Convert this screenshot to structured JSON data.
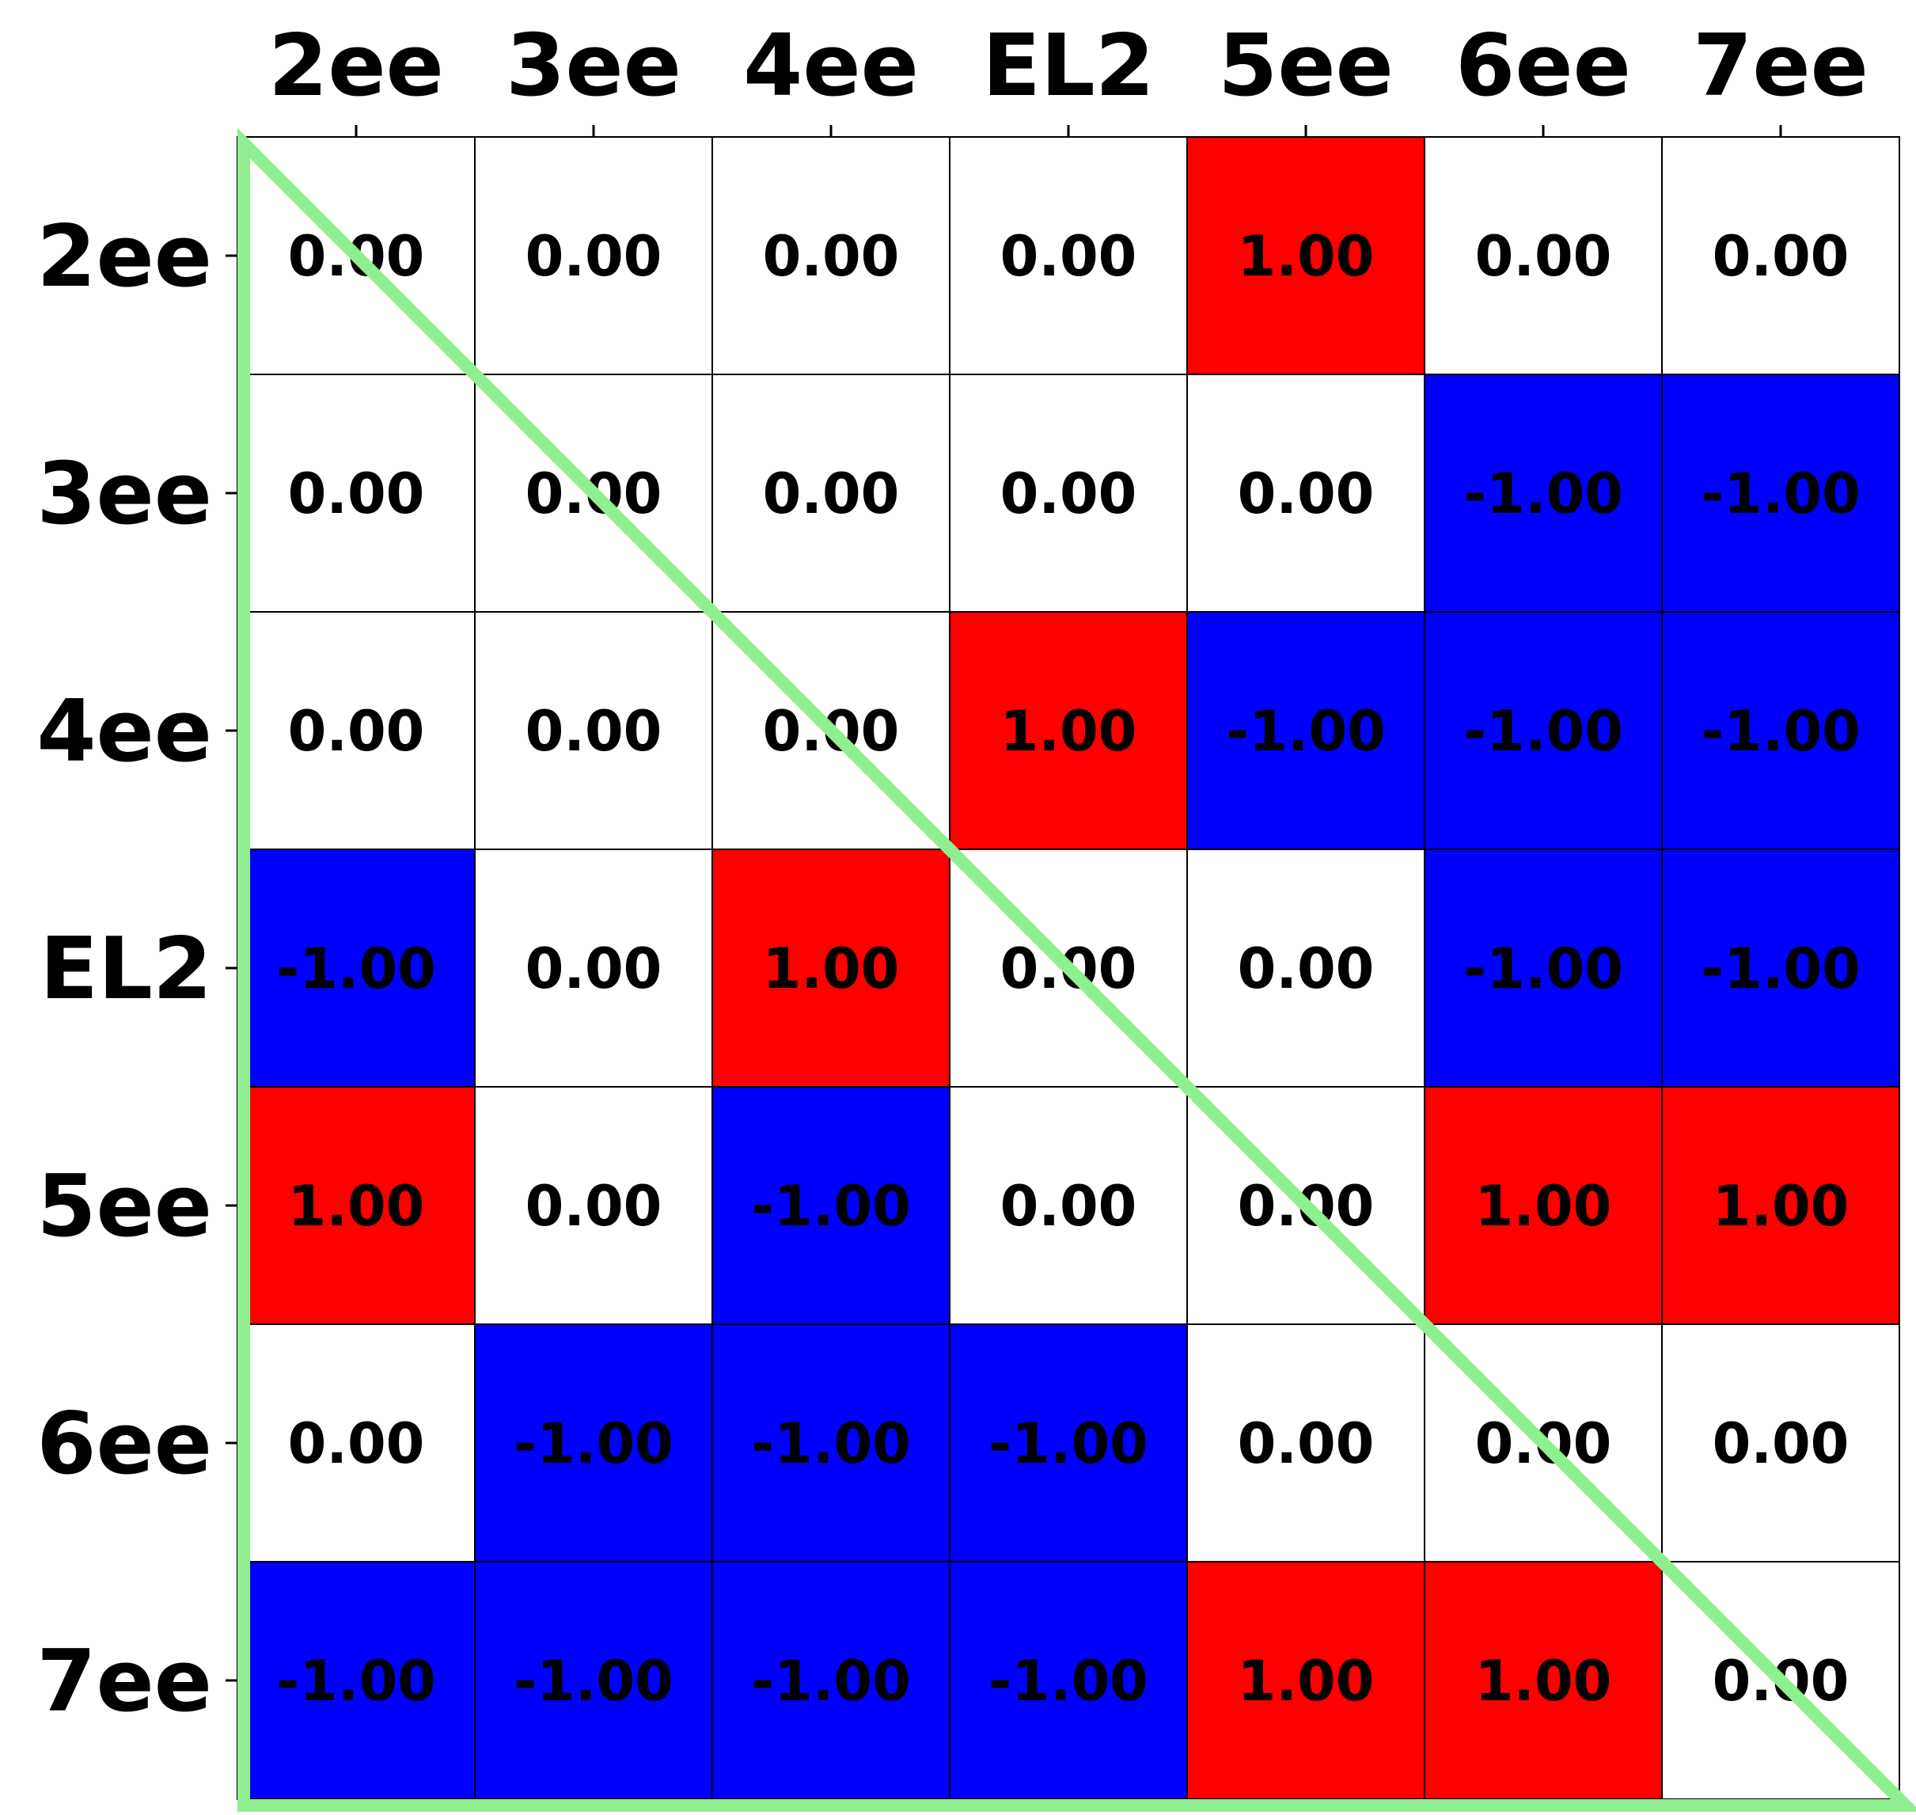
{
  "chart_data": {
    "type": "heatmap",
    "title": "",
    "xlabel": "",
    "ylabel": "",
    "x_categories": [
      "2ee",
      "3ee",
      "4ee",
      "EL2",
      "5ee",
      "6ee",
      "7ee"
    ],
    "y_categories": [
      "2ee",
      "3ee",
      "4ee",
      "EL2",
      "5ee",
      "6ee",
      "7ee"
    ],
    "x_axis_position": "top",
    "value_format": "0.00",
    "values": [
      [
        0,
        0,
        0,
        0,
        1,
        0,
        0
      ],
      [
        0,
        0,
        0,
        0,
        0,
        -1,
        -1
      ],
      [
        0,
        0,
        0,
        1,
        -1,
        -1,
        -1
      ],
      [
        -1,
        0,
        1,
        0,
        0,
        -1,
        -1
      ],
      [
        1,
        0,
        -1,
        0,
        0,
        1,
        1
      ],
      [
        0,
        -1,
        -1,
        -1,
        0,
        0,
        0
      ],
      [
        -1,
        -1,
        -1,
        -1,
        1,
        1,
        0
      ]
    ],
    "colors": {
      "positive": "#ff0000",
      "zero": "#ffffff",
      "negative": "#0000ff",
      "grid": "#000000",
      "triangle_outline": "#90ee90"
    },
    "grid": true,
    "legend": "none"
  }
}
